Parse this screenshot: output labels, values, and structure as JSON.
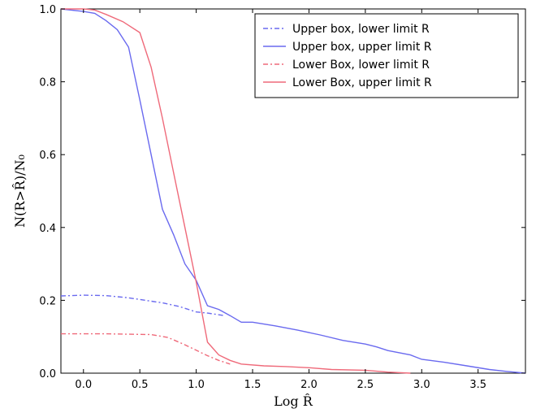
{
  "chart_data": {
    "type": "line",
    "xlabel": "Log R̂",
    "ylabel": "N(R>R̂)/N₀",
    "xlim": [
      -0.2,
      3.92
    ],
    "ylim": [
      0.0,
      1.0
    ],
    "x_ticks": [
      "0.0",
      "0.5",
      "1.0",
      "1.5",
      "2.0",
      "2.5",
      "3.0",
      "3.5"
    ],
    "x_tick_values": [
      0.0,
      0.5,
      1.0,
      1.5,
      2.0,
      2.5,
      3.0,
      3.5
    ],
    "y_ticks": [
      "0.0",
      "0.2",
      "0.4",
      "0.6",
      "0.8",
      "1.0"
    ],
    "y_tick_values": [
      0.0,
      0.2,
      0.4,
      0.6,
      0.8,
      1.0
    ],
    "grid": false,
    "legend_position": "top-right",
    "series": [
      {
        "name": "Upper box, lower limit R",
        "color": "#6a6aef",
        "style": "dashdot",
        "points": [
          [
            -0.2,
            0.212
          ],
          [
            0.0,
            0.214
          ],
          [
            0.2,
            0.213
          ],
          [
            0.4,
            0.207
          ],
          [
            0.55,
            0.2
          ],
          [
            0.7,
            0.193
          ],
          [
            0.85,
            0.183
          ],
          [
            1.0,
            0.168
          ],
          [
            1.1,
            0.165
          ],
          [
            1.25,
            0.158
          ]
        ]
      },
      {
        "name": "Upper box, upper limit R",
        "color": "#6a6aef",
        "style": "solid",
        "points": [
          [
            -0.2,
            1.0
          ],
          [
            0.0,
            0.993
          ],
          [
            0.1,
            0.988
          ],
          [
            0.2,
            0.968
          ],
          [
            0.3,
            0.943
          ],
          [
            0.4,
            0.895
          ],
          [
            0.5,
            0.75
          ],
          [
            0.6,
            0.6
          ],
          [
            0.7,
            0.45
          ],
          [
            0.8,
            0.38
          ],
          [
            0.9,
            0.3
          ],
          [
            1.0,
            0.255
          ],
          [
            1.1,
            0.185
          ],
          [
            1.2,
            0.175
          ],
          [
            1.3,
            0.158
          ],
          [
            1.4,
            0.14
          ],
          [
            1.5,
            0.14
          ],
          [
            1.7,
            0.13
          ],
          [
            1.9,
            0.118
          ],
          [
            2.1,
            0.105
          ],
          [
            2.3,
            0.09
          ],
          [
            2.5,
            0.08
          ],
          [
            2.6,
            0.072
          ],
          [
            2.7,
            0.062
          ],
          [
            2.9,
            0.05
          ],
          [
            3.0,
            0.038
          ],
          [
            3.2,
            0.03
          ],
          [
            3.4,
            0.02
          ],
          [
            3.6,
            0.01
          ],
          [
            3.75,
            0.005
          ],
          [
            3.92,
            0.0
          ]
        ]
      },
      {
        "name": "Lower Box, lower limit R",
        "color": "#ef6a7a",
        "style": "dashdot",
        "points": [
          [
            -0.2,
            0.108
          ],
          [
            0.0,
            0.108
          ],
          [
            0.2,
            0.108
          ],
          [
            0.4,
            0.107
          ],
          [
            0.6,
            0.106
          ],
          [
            0.75,
            0.098
          ],
          [
            0.9,
            0.078
          ],
          [
            1.0,
            0.063
          ],
          [
            1.1,
            0.048
          ],
          [
            1.2,
            0.035
          ],
          [
            1.3,
            0.025
          ]
        ]
      },
      {
        "name": "Lower Box, upper limit R",
        "color": "#ef6a7a",
        "style": "solid",
        "points": [
          [
            -0.2,
            1.0
          ],
          [
            0.0,
            1.0
          ],
          [
            0.1,
            0.997
          ],
          [
            0.2,
            0.985
          ],
          [
            0.35,
            0.965
          ],
          [
            0.5,
            0.935
          ],
          [
            0.6,
            0.84
          ],
          [
            0.7,
            0.7
          ],
          [
            0.8,
            0.55
          ],
          [
            0.9,
            0.4
          ],
          [
            1.0,
            0.25
          ],
          [
            1.1,
            0.085
          ],
          [
            1.2,
            0.05
          ],
          [
            1.3,
            0.035
          ],
          [
            1.4,
            0.025
          ],
          [
            1.6,
            0.02
          ],
          [
            1.8,
            0.018
          ],
          [
            2.0,
            0.015
          ],
          [
            2.2,
            0.01
          ],
          [
            2.5,
            0.008
          ],
          [
            2.7,
            0.003
          ],
          [
            2.9,
            0.0
          ]
        ]
      }
    ]
  }
}
